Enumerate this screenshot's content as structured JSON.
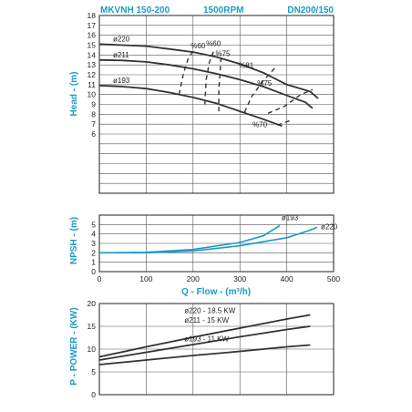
{
  "header": {
    "model": "MKVNH 150-200",
    "speed": "1500RPM",
    "size": "DN200/150"
  },
  "colors": {
    "accent": "#1a9bc4",
    "curve": "#333333",
    "npsh": "#1a9bc4",
    "grid": "#555555",
    "frame": "#222222"
  },
  "chart_data": [
    {
      "type": "line",
      "panel": "head",
      "ylabel": "Head - (m)",
      "xlim": [
        0,
        500
      ],
      "ylim": [
        0,
        18
      ],
      "xticks": [
        0,
        100,
        200,
        300,
        400,
        500
      ],
      "yticks": [
        6,
        7,
        8,
        9,
        10,
        11,
        12,
        13,
        14,
        15,
        16,
        17,
        18
      ],
      "grid": true,
      "series": [
        {
          "name": "ø220",
          "points": [
            [
              0,
              15.1
            ],
            [
              50,
              15.0
            ],
            [
              100,
              14.9
            ],
            [
              150,
              14.6
            ],
            [
              200,
              14.3
            ],
            [
              250,
              13.8
            ],
            [
              300,
              13.1
            ],
            [
              350,
              12.2
            ],
            [
              400,
              11.0
            ],
            [
              450,
              10.3
            ],
            [
              467,
              9.6
            ]
          ]
        },
        {
          "name": "ø211",
          "points": [
            [
              0,
              13.5
            ],
            [
              50,
              13.45
            ],
            [
              100,
              13.3
            ],
            [
              150,
              13.0
            ],
            [
              200,
              12.6
            ],
            [
              250,
              12.1
            ],
            [
              300,
              11.5
            ],
            [
              350,
              10.8
            ],
            [
              400,
              9.9
            ],
            [
              440,
              9.2
            ],
            [
              455,
              8.6
            ]
          ]
        },
        {
          "name": "ø193",
          "points": [
            [
              0,
              10.9
            ],
            [
              50,
              10.8
            ],
            [
              100,
              10.6
            ],
            [
              150,
              10.2
            ],
            [
              200,
              9.7
            ],
            [
              250,
              9.1
            ],
            [
              300,
              8.3
            ],
            [
              350,
              7.5
            ],
            [
              390,
              6.8
            ]
          ]
        }
      ],
      "efficiency_lines": [
        {
          "label": "%60",
          "points": [
            [
              170,
              10.0
            ],
            [
              180,
              12.2
            ],
            [
              190,
              13.7
            ],
            [
              200,
              14.4
            ]
          ]
        },
        {
          "label": "%60",
          "points": [
            [
              225,
              9.0
            ],
            [
              228,
              11.5
            ],
            [
              235,
              13.3
            ],
            [
              245,
              14.5
            ]
          ]
        },
        {
          "label": "%75",
          "points": [
            [
              255,
              8.3
            ],
            [
              255,
              10.5
            ],
            [
              258,
              12.5
            ],
            [
              260,
              13.9
            ]
          ]
        },
        {
          "label": "%81",
          "points": [
            [
              310,
              8.2
            ],
            [
              325,
              9.8
            ],
            [
              350,
              11.4
            ],
            [
              375,
              12.7
            ]
          ]
        },
        {
          "label": "%75",
          "points": [
            [
              360,
              8.1
            ],
            [
              395,
              8.8
            ],
            [
              430,
              10.0
            ],
            [
              455,
              10.5
            ]
          ]
        },
        {
          "label": "%70",
          "points": [
            [
              380,
              6.9
            ],
            [
              410,
              7.4
            ]
          ]
        }
      ]
    },
    {
      "type": "line",
      "panel": "npsh",
      "ylabel": "NPSH - (m)",
      "xlabel": "Q - Flow - (m³/h)",
      "xlim": [
        0,
        500
      ],
      "ylim": [
        0,
        6
      ],
      "xticks": [
        0,
        100,
        200,
        300,
        400,
        500
      ],
      "yticks": [
        0,
        1,
        2,
        3,
        4,
        5
      ],
      "grid": true,
      "series": [
        {
          "name": "ø193",
          "points": [
            [
              0,
              2.0
            ],
            [
              100,
              2.05
            ],
            [
              200,
              2.35
            ],
            [
              300,
              3.1
            ],
            [
              350,
              3.8
            ],
            [
              385,
              4.9
            ]
          ]
        },
        {
          "name": "ø220",
          "points": [
            [
              0,
              2.0
            ],
            [
              100,
              2.0
            ],
            [
              200,
              2.2
            ],
            [
              300,
              2.75
            ],
            [
              400,
              3.6
            ],
            [
              450,
              4.4
            ],
            [
              465,
              4.7
            ]
          ]
        }
      ]
    },
    {
      "type": "line",
      "panel": "power",
      "ylabel": "P - POWER - (KW)",
      "xlim": [
        0,
        500
      ],
      "ylim": [
        0,
        20
      ],
      "xticks": [
        0,
        100,
        200,
        300,
        400,
        500
      ],
      "yticks": [
        0,
        5,
        10,
        15,
        20
      ],
      "grid": true,
      "series": [
        {
          "name": "ø220 - 18.5 KW",
          "points": [
            [
              0,
              8.3
            ],
            [
              100,
              10.5
            ],
            [
              200,
              12.6
            ],
            [
              300,
              14.6
            ],
            [
              400,
              16.6
            ],
            [
              450,
              17.5
            ]
          ]
        },
        {
          "name": "ø211 - 15 KW",
          "points": [
            [
              0,
              7.6
            ],
            [
              100,
              9.3
            ],
            [
              200,
              11.0
            ],
            [
              300,
              12.7
            ],
            [
              400,
              14.3
            ],
            [
              450,
              15.0
            ]
          ]
        },
        {
          "name": "ø193 - 11 KW",
          "points": [
            [
              0,
              6.6
            ],
            [
              100,
              7.6
            ],
            [
              200,
              8.6
            ],
            [
              300,
              9.5
            ],
            [
              400,
              10.5
            ],
            [
              450,
              10.9
            ]
          ]
        }
      ]
    }
  ]
}
